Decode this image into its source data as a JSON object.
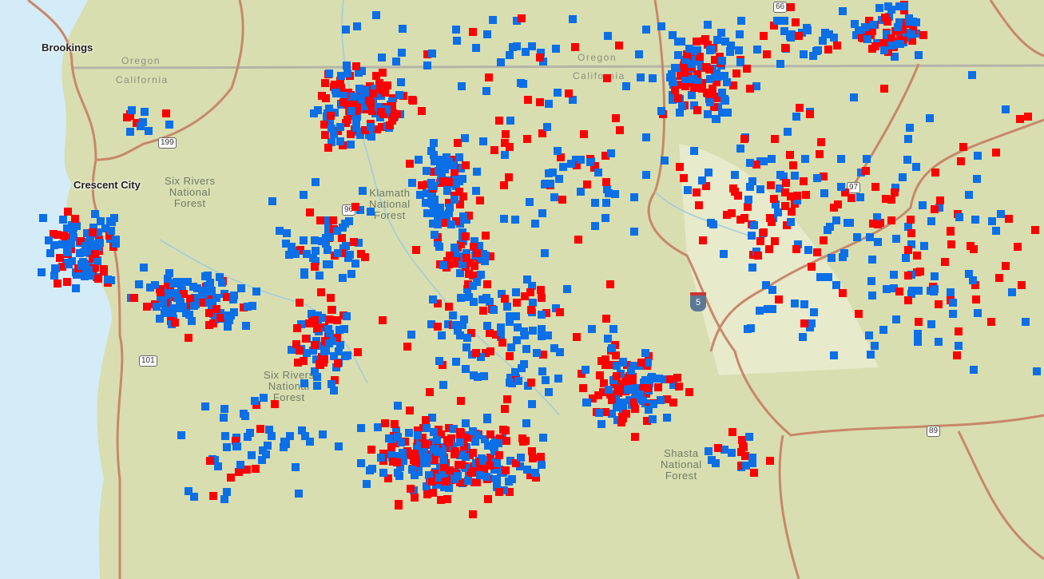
{
  "map": {
    "cities": [
      {
        "name": "Brookings"
      },
      {
        "name": "Crescent City"
      }
    ],
    "states": [
      "Oregon",
      "California",
      "Oregon",
      "California"
    ],
    "forests": [
      "Six Rivers\nNational\nForest",
      "Six Rivers\nNational\nForest",
      "Klamath\nNational\nForest",
      "Shasta\nNational\nForest"
    ],
    "shields": {
      "us199": "199",
      "us101": "101",
      "ca96": "96",
      "us97": "97",
      "ca89": "89",
      "ca66": "66",
      "i5": "5"
    },
    "legend_colors": {
      "blue": "#0b6fe8",
      "red": "#ff0000"
    },
    "basemap_colors": {
      "terrain": "#d9dfb4",
      "water": "#d4ecf7",
      "road": "#c9876a"
    }
  }
}
